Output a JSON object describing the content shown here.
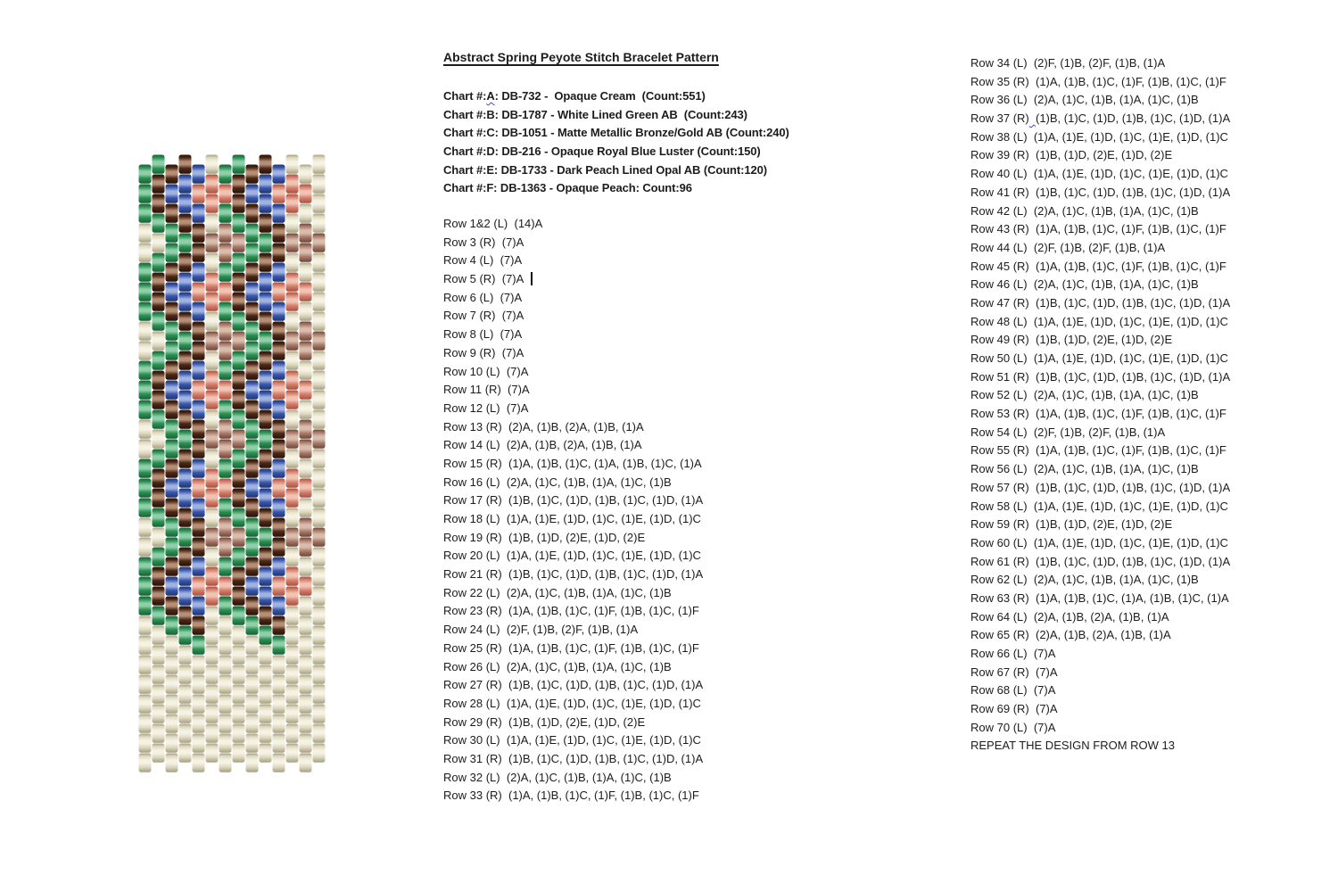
{
  "title": "Abstract Spring Peyote Stitch Bracelet Pattern",
  "color_key": [
    {
      "prefix": "Chart #:",
      "letter": "A",
      "suffix": ":",
      "desc": " DB-732 -  Opaque Cream  (Count:551)",
      "color": "#ded9c0",
      "squiggle_letter": true
    },
    {
      "prefix": "Chart #:",
      "letter": "B",
      "suffix": ":",
      "desc": " DB-1787 - White Lined Green AB  (Count:243)",
      "color": "#2e9053",
      "squiggle_letter": false
    },
    {
      "prefix": "Chart #:",
      "letter": "C",
      "suffix": ":",
      "desc": " DB-1051 - Matte Metallic Bronze/Gold AB (Count:240)",
      "color": "#4b2918",
      "squiggle_letter": false
    },
    {
      "prefix": "Chart #:",
      "letter": "D",
      "suffix": ":",
      "desc": " DB-216 - Opaque Royal Blue Luster (Count:150)",
      "color": "#3a57ab",
      "squiggle_letter": false
    },
    {
      "prefix": "Chart #:",
      "letter": "E",
      "suffix": ":",
      "desc": " DB-1733 - Dark Peach Lined Opal AB (Count:120)",
      "color": "#d5806e",
      "squiggle_letter": false
    },
    {
      "prefix": "Chart #:",
      "letter": "F",
      "suffix": ":",
      "desc": " DB-1363 - Opaque Peach: Count:96",
      "color": "#a87b6b",
      "squiggle_letter": false
    }
  ],
  "rows_left": [
    {
      "label": "Row 1&2 (L)",
      "beads": "(14)A"
    },
    {
      "label": "Row 3 (R)",
      "beads": "(7)A"
    },
    {
      "label": "Row 4 (L)",
      "beads": "(7)A"
    },
    {
      "label": "Row 5 (R)",
      "beads": "(7)A",
      "has_cursor": true
    },
    {
      "label": "Row 6 (L)",
      "beads": "(7)A"
    },
    {
      "label": "Row 7 (R)",
      "beads": "(7)A"
    },
    {
      "label": "Row 8 (L)",
      "beads": "(7)A"
    },
    {
      "label": "Row 9 (R)",
      "beads": "(7)A"
    },
    {
      "label": "Row 10 (L)",
      "beads": "(7)A"
    },
    {
      "label": "Row 11 (R)",
      "beads": "(7)A"
    },
    {
      "label": "Row 12 (L)",
      "beads": "(7)A"
    },
    {
      "label": "Row 13 (R)",
      "beads": "(2)A, (1)B, (2)A, (1)B, (1)A"
    },
    {
      "label": "Row 14 (L)",
      "beads": "(2)A, (1)B, (2)A, (1)B, (1)A"
    },
    {
      "label": "Row 15 (R)",
      "beads": "(1)A, (1)B, (1)C, (1)A, (1)B, (1)C, (1)A"
    },
    {
      "label": "Row 16 (L)",
      "beads": "(2)A, (1)C, (1)B, (1)A, (1)C, (1)B"
    },
    {
      "label": "Row 17 (R)",
      "beads": "(1)B, (1)C, (1)D, (1)B, (1)C, (1)D, (1)A"
    },
    {
      "label": "Row 18 (L)",
      "beads": "(1)A, (1)E, (1)D, (1)C, (1)E, (1)D, (1)C"
    },
    {
      "label": "Row 19 (R)",
      "beads": "(1)B, (1)D, (2)E, (1)D, (2)E"
    },
    {
      "label": "Row 20 (L)",
      "beads": "(1)A, (1)E, (1)D, (1)C, (1)E, (1)D, (1)C"
    },
    {
      "label": "Row 21 (R)",
      "beads": "(1)B, (1)C, (1)D, (1)B, (1)C, (1)D, (1)A"
    },
    {
      "label": "Row 22 (L)",
      "beads": "(2)A, (1)C, (1)B, (1)A, (1)C, (1)B"
    },
    {
      "label": "Row 23 (R)",
      "beads": "(1)A, (1)B, (1)C, (1)F, (1)B, (1)C, (1)F"
    },
    {
      "label": "Row 24 (L)",
      "beads": "(2)F, (1)B, (2)F, (1)B, (1)A"
    },
    {
      "label": "Row 25 (R)",
      "beads": "(1)A, (1)B, (1)C, (1)F, (1)B, (1)C, (1)F"
    },
    {
      "label": "Row 26 (L)",
      "beads": "(2)A, (1)C, (1)B, (1)A, (1)C, (1)B"
    },
    {
      "label": "Row 27 (R)",
      "beads": "(1)B, (1)C, (1)D, (1)B, (1)C, (1)D, (1)A"
    },
    {
      "label": "Row 28 (L)",
      "beads": "(1)A, (1)E, (1)D, (1)C, (1)E, (1)D, (1)C"
    },
    {
      "label": "Row 29 (R)",
      "beads": "(1)B, (1)D, (2)E, (1)D, (2)E"
    },
    {
      "label": "Row 30 (L)",
      "beads": "(1)A, (1)E, (1)D, (1)C, (1)E, (1)D, (1)C"
    },
    {
      "label": "Row 31 (R)",
      "beads": "(1)B, (1)C, (1)D, (1)B, (1)C, (1)D, (1)A"
    },
    {
      "label": "Row 32 (L)",
      "beads": "(2)A, (1)C, (1)B, (1)A, (1)C, (1)B"
    },
    {
      "label": "Row 33 (R)",
      "beads": "(1)A, (1)B, (1)C, (1)F, (1)B, (1)C, (1)F"
    }
  ],
  "rows_right": [
    {
      "label": "Row 34 (L)",
      "beads": "(2)F, (1)B, (2)F, (1)B, (1)A"
    },
    {
      "label": "Row 35 (R)",
      "beads": "(1)A, (1)B, (1)C, (1)F, (1)B, (1)C, (1)F"
    },
    {
      "label": "Row 36 (L)",
      "beads": "(2)A, (1)C, (1)B, (1)A, (1)C, (1)B"
    },
    {
      "label": "Row 37 (R)",
      "beads": "(1)B, (1)C, (1)D, (1)B, (1)C, (1)D, (1)A",
      "squiggle_gap": true
    },
    {
      "label": "Row 38 (L)",
      "beads": "(1)A, (1)E, (1)D, (1)C, (1)E, (1)D, (1)C"
    },
    {
      "label": "Row 39 (R)",
      "beads": "(1)B, (1)D, (2)E, (1)D, (2)E"
    },
    {
      "label": "Row 40 (L)",
      "beads": "(1)A, (1)E, (1)D, (1)C, (1)E, (1)D, (1)C"
    },
    {
      "label": "Row 41 (R)",
      "beads": "(1)B, (1)C, (1)D, (1)B, (1)C, (1)D, (1)A"
    },
    {
      "label": "Row 42 (L)",
      "beads": "(2)A, (1)C, (1)B, (1)A, (1)C, (1)B"
    },
    {
      "label": "Row 43 (R)",
      "beads": "(1)A, (1)B, (1)C, (1)F, (1)B, (1)C, (1)F"
    },
    {
      "label": "Row 44 (L)",
      "beads": "(2)F, (1)B, (2)F, (1)B, (1)A"
    },
    {
      "label": "Row 45 (R)",
      "beads": "(1)A, (1)B, (1)C, (1)F, (1)B, (1)C, (1)F"
    },
    {
      "label": "Row 46 (L)",
      "beads": "(2)A, (1)C, (1)B, (1)A, (1)C, (1)B"
    },
    {
      "label": "Row 47 (R)",
      "beads": "(1)B, (1)C, (1)D, (1)B, (1)C, (1)D, (1)A"
    },
    {
      "label": "Row 48 (L)",
      "beads": "(1)A, (1)E, (1)D, (1)C, (1)E, (1)D, (1)C"
    },
    {
      "label": "Row 49 (R)",
      "beads": "(1)B, (1)D, (2)E, (1)D, (2)E"
    },
    {
      "label": "Row 50 (L)",
      "beads": "(1)A, (1)E, (1)D, (1)C, (1)E, (1)D, (1)C"
    },
    {
      "label": "Row 51 (R)",
      "beads": "(1)B, (1)C, (1)D, (1)B, (1)C, (1)D, (1)A"
    },
    {
      "label": "Row 52 (L)",
      "beads": "(2)A, (1)C, (1)B, (1)A, (1)C, (1)B"
    },
    {
      "label": "Row 53 (R)",
      "beads": "(1)A, (1)B, (1)C, (1)F, (1)B, (1)C, (1)F"
    },
    {
      "label": "Row 54 (L)",
      "beads": "(2)F, (1)B, (2)F, (1)B, (1)A"
    },
    {
      "label": "Row 55 (R)",
      "beads": "(1)A, (1)B, (1)C, (1)F, (1)B, (1)C, (1)F"
    },
    {
      "label": "Row 56 (L)",
      "beads": "(2)A, (1)C, (1)B, (1)A, (1)C, (1)B"
    },
    {
      "label": "Row 57 (R)",
      "beads": "(1)B, (1)C, (1)D, (1)B, (1)C, (1)D, (1)A"
    },
    {
      "label": "Row 58 (L)",
      "beads": "(1)A, (1)E, (1)D, (1)C, (1)E, (1)D, (1)C"
    },
    {
      "label": "Row 59 (R)",
      "beads": "(1)B, (1)D, (2)E, (1)D, (2)E"
    },
    {
      "label": "Row 60 (L)",
      "beads": "(1)A, (1)E, (1)D, (1)C, (1)E, (1)D, (1)C"
    },
    {
      "label": "Row 61 (R)",
      "beads": "(1)B, (1)C, (1)D, (1)B, (1)C, (1)D, (1)A"
    },
    {
      "label": "Row 62 (L)",
      "beads": "(2)A, (1)C, (1)B, (1)A, (1)C, (1)B"
    },
    {
      "label": "Row 63 (R)",
      "beads": "(1)A, (1)B, (1)C, (1)A, (1)B, (1)C, (1)A"
    },
    {
      "label": "Row 64 (L)",
      "beads": "(2)A, (1)B, (2)A, (1)B, (1)A"
    },
    {
      "label": "Row 65 (R)",
      "beads": "(2)A, (1)B, (2)A, (1)B, (1)A"
    },
    {
      "label": "Row 66 (L)",
      "beads": "(7)A"
    },
    {
      "label": "Row 67 (R)",
      "beads": "(7)A"
    },
    {
      "label": "Row 68 (L)",
      "beads": "(7)A"
    },
    {
      "label": "Row 69 (R)",
      "beads": "(7)A"
    },
    {
      "label": "Row 70 (L)",
      "beads": "(7)A"
    }
  ],
  "repeat_note": "REPEAT THE DESIGN FROM ROW 13",
  "bead_chart": {
    "columns": 14,
    "bead_width": 15,
    "bead_height": 22,
    "render_through_row": 62,
    "colors": {
      "A": {
        "dark": "#a69f82",
        "base": "#ded9c0",
        "light": "#f5f2e3"
      },
      "B": {
        "dark": "#176237",
        "base": "#2e9053",
        "light": "#8ecfa9"
      },
      "C": {
        "dark": "#2a1206",
        "base": "#4b2918",
        "light": "#b58e74"
      },
      "D": {
        "dark": "#1f3570",
        "base": "#3a57ab",
        "light": "#9fb2e2"
      },
      "E": {
        "dark": "#a6523f",
        "base": "#d5806e",
        "light": "#f1c3b3"
      },
      "F": {
        "dark": "#6e4536",
        "base": "#a87b6b",
        "light": "#d9bcac"
      }
    }
  }
}
